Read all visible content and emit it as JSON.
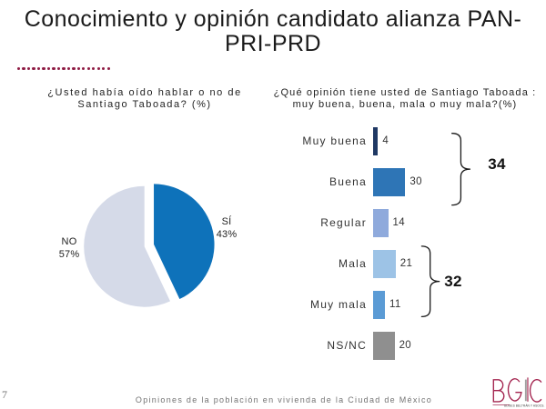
{
  "title": {
    "line1": "Conocimiento y opinión candidato alianza PAN-",
    "line2": "PRI-PRD"
  },
  "accent": {
    "dotted_line_color": "#8E1C44",
    "dot_count": 19
  },
  "chart_data": [
    {
      "type": "pie",
      "title_lines": [
        "¿Usted había oído hablar o no de",
        "Santiago Taboada? (%)"
      ],
      "slices": [
        {
          "label": "SÍ",
          "value": 43,
          "display": "43%",
          "color": "#0E72BA",
          "exploded": true
        },
        {
          "label": "NO",
          "value": 57,
          "display": "57%",
          "color": "#D5DAE8",
          "exploded": false
        }
      ],
      "start_angle_deg": 0,
      "direction": "clockwise",
      "legend": "none"
    },
    {
      "type": "bar",
      "orientation": "horizontal",
      "title_lines": [
        "¿Qué opinión tiene usted de Santiago Taboada :",
        "muy buena, buena, mala o muy mala?(%)"
      ],
      "categories": [
        "Muy buena",
        "Buena",
        "Regular",
        "Mala",
        "Muy mala",
        "NS/NC"
      ],
      "values": [
        4,
        30,
        14,
        21,
        11,
        20
      ],
      "bar_colors": [
        "#1F3864",
        "#2E75B6",
        "#8FAADC",
        "#9DC3E6",
        "#5B9BD5",
        "#8F8F8F"
      ],
      "value_labels": [
        "4",
        "30",
        "14",
        "21",
        "11",
        "20"
      ],
      "annotations": [
        {
          "label": "34",
          "sum_of": [
            "Muy buena",
            "Buena"
          ],
          "rows": [
            0,
            1
          ]
        },
        {
          "label": "32",
          "sum_of": [
            "Mala",
            "Muy mala"
          ],
          "rows": [
            3,
            4
          ]
        }
      ],
      "xlim": [
        0,
        35
      ],
      "grid": "off",
      "legend": "none"
    }
  ],
  "footer": {
    "page_number": "7",
    "caption": "Opiniones de la población en vivienda de la Ciudad de México",
    "logo": {
      "text": "BGC",
      "tagline": "ULISES BELTRÁN Y ASOCS.",
      "color": "#A3234E",
      "bar_gray": "#A0A0A0"
    }
  }
}
